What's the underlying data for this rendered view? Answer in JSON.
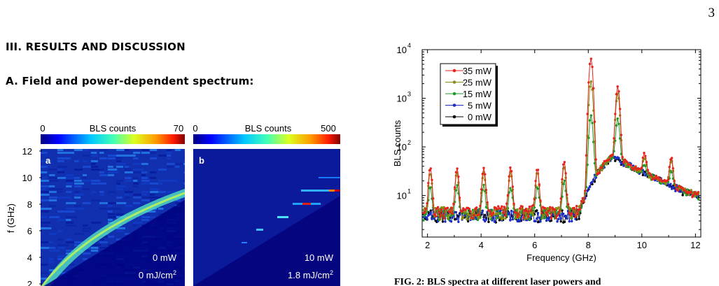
{
  "page_number": "3",
  "section_heading": "III.   RESULTS AND DISCUSSION",
  "subsection_heading": "A.   Field and power-dependent spectrum:",
  "caption_fragment": "FIG. 2: BLS spectra at different laser powers and",
  "colors": {
    "red": "#e8231e",
    "olive": "#8c8c14",
    "green": "#1e9a28",
    "blue": "#1c2cc8",
    "black": "#000000"
  },
  "heatmaps": [
    {
      "panel_label": "a",
      "colorbar": {
        "label": "BLS counts",
        "min_label": "0",
        "max_label": "70"
      },
      "power_label": "0 mW",
      "fluence_label": "0 mJ/cm",
      "fluence_sup": "2",
      "ylabel": "f (GHz)",
      "yticks": [
        "12",
        "10",
        "8",
        "6",
        "4",
        "2"
      ]
    },
    {
      "panel_label": "b",
      "colorbar": {
        "label": "BLS counts",
        "min_label": "0",
        "max_label": "500"
      },
      "power_label": "10 mW",
      "fluence_label": "1.8 mJ/cm",
      "fluence_sup": "2"
    }
  ],
  "chart_data": {
    "type": "line",
    "title": "",
    "xlabel": "Frequency (GHz)",
    "ylabel": "BLS counts",
    "xlim": [
      1.8,
      12.2
    ],
    "ylim": [
      1.4,
      10000
    ],
    "yscale": "log",
    "xticks": [
      "2",
      "4",
      "6",
      "8",
      "10",
      "12"
    ],
    "yticks": [
      {
        "base": "10",
        "exp": "4",
        "value": 10000
      },
      {
        "base": "10",
        "exp": "3",
        "value": 1000
      },
      {
        "base": "10",
        "exp": "2",
        "value": 100
      },
      {
        "base": "10",
        "exp": "1",
        "value": 10
      }
    ],
    "legend_position": "top-left",
    "series": [
      {
        "name": "35 mW",
        "color": "#e8231e",
        "baseline": 4.5,
        "peak_amp": 46,
        "peak_amp_8": 6500,
        "peak_amp_9": 1700,
        "peak_amp_10": 45
      },
      {
        "name": "25 mW",
        "color": "#8c8c14",
        "baseline": 4.3,
        "peak_amp": 36,
        "peak_amp_8": 2200,
        "peak_amp_9": 1200,
        "peak_amp_10": 32
      },
      {
        "name": "15 mW",
        "color": "#1e9a28",
        "baseline": 4.1,
        "peak_amp": 16,
        "peak_amp_8": 430,
        "peak_amp_9": 320,
        "peak_amp_10": 14
      },
      {
        "name": "5 mW",
        "color": "#1c2cc8",
        "baseline": 3.8,
        "peak_amp": 0,
        "peak_amp_8": 0,
        "peak_amp_9": 0,
        "peak_amp_10": 0
      },
      {
        "name": "0 mW",
        "color": "#000000",
        "baseline": 3.7,
        "peak_amp": 0,
        "peak_amp_8": 0,
        "peak_amp_9": 0,
        "peak_amp_10": 0
      }
    ],
    "broad_band": {
      "start_ghz": 7.6,
      "peak_ghz": 8.9,
      "peak_value": 60,
      "end_ghz": 12,
      "end_value": 6
    }
  }
}
